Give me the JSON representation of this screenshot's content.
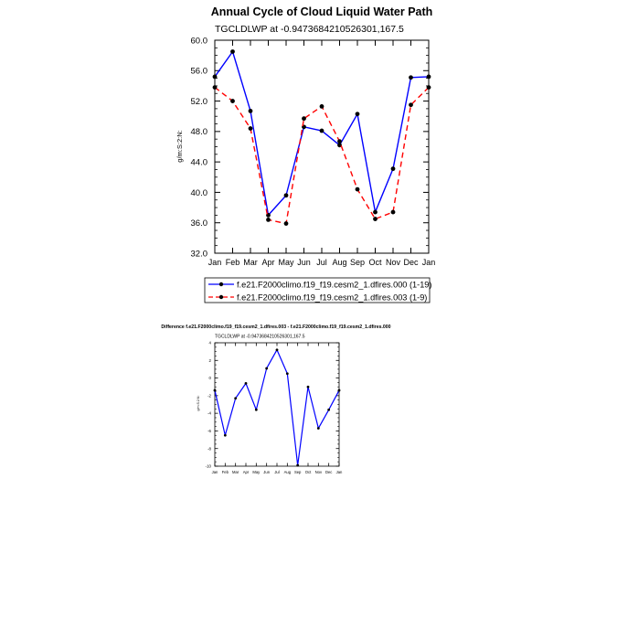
{
  "chart_data": [
    {
      "type": "line",
      "title": "Annual Cycle of Cloud Liquid Water Path",
      "subtitle": "TGCLDLWP at -0.9473684210526301,167.5",
      "ylabel": "g/m:S:2:N:",
      "xlabel": "",
      "categories": [
        "Jan",
        "Feb",
        "Mar",
        "Apr",
        "May",
        "Jun",
        "Jul",
        "Aug",
        "Sep",
        "Oct",
        "Nov",
        "Dec",
        "Jan"
      ],
      "yticks": [
        "32.0",
        "36.0",
        "40.0",
        "44.0",
        "48.0",
        "52.0",
        "56.0",
        "60.0"
      ],
      "ylim": [
        32,
        60
      ],
      "legend": "bottom",
      "series": [
        {
          "name": "f.e21.F2000climo.f19_f19.cesm2_1.dfires.000 (1-19)",
          "color": "#0000ff",
          "dash": "solid",
          "values": [
            55.2,
            58.5,
            50.7,
            37.0,
            39.6,
            48.6,
            48.1,
            46.2,
            50.3,
            37.4,
            43.1,
            55.1,
            55.2
          ]
        },
        {
          "name": "f.e21.F2000climo.f19_f19.cesm2_1.dfires.003 (1-9)",
          "color": "#ff0000",
          "dash": "dashed",
          "values": [
            53.8,
            52.0,
            48.4,
            36.4,
            35.9,
            49.7,
            51.3,
            46.7,
            40.4,
            36.5,
            37.4,
            51.5,
            53.8
          ]
        }
      ]
    },
    {
      "type": "line",
      "title": "Difference f.e21.F2000climo.f19_f19.cesm2_1.dfires.003 - f.e21.F2000climo.f19_f19.cesm2_1.dfires.000",
      "subtitle": "TGCLDLWP at -0.9473684210526301,167.5",
      "ylabel": "g/m:S:2:N:",
      "xlabel": "",
      "categories": [
        "Jan",
        "Feb",
        "Mar",
        "Apr",
        "May",
        "Jun",
        "Jul",
        "Aug",
        "Sep",
        "Oct",
        "Nov",
        "Dec",
        "Jan"
      ],
      "yticks": [
        "-10",
        "-8",
        "-6",
        "-4",
        "-2",
        "0",
        "2",
        "4"
      ],
      "ylim": [
        -10,
        4
      ],
      "series": [
        {
          "name": "difference",
          "color": "#0000ff",
          "dash": "solid",
          "values": [
            -1.4,
            -6.5,
            -2.3,
            -0.6,
            -3.6,
            1.1,
            3.2,
            0.5,
            -9.9,
            -1.0,
            -5.7,
            -3.6,
            -1.4
          ]
        }
      ]
    }
  ]
}
